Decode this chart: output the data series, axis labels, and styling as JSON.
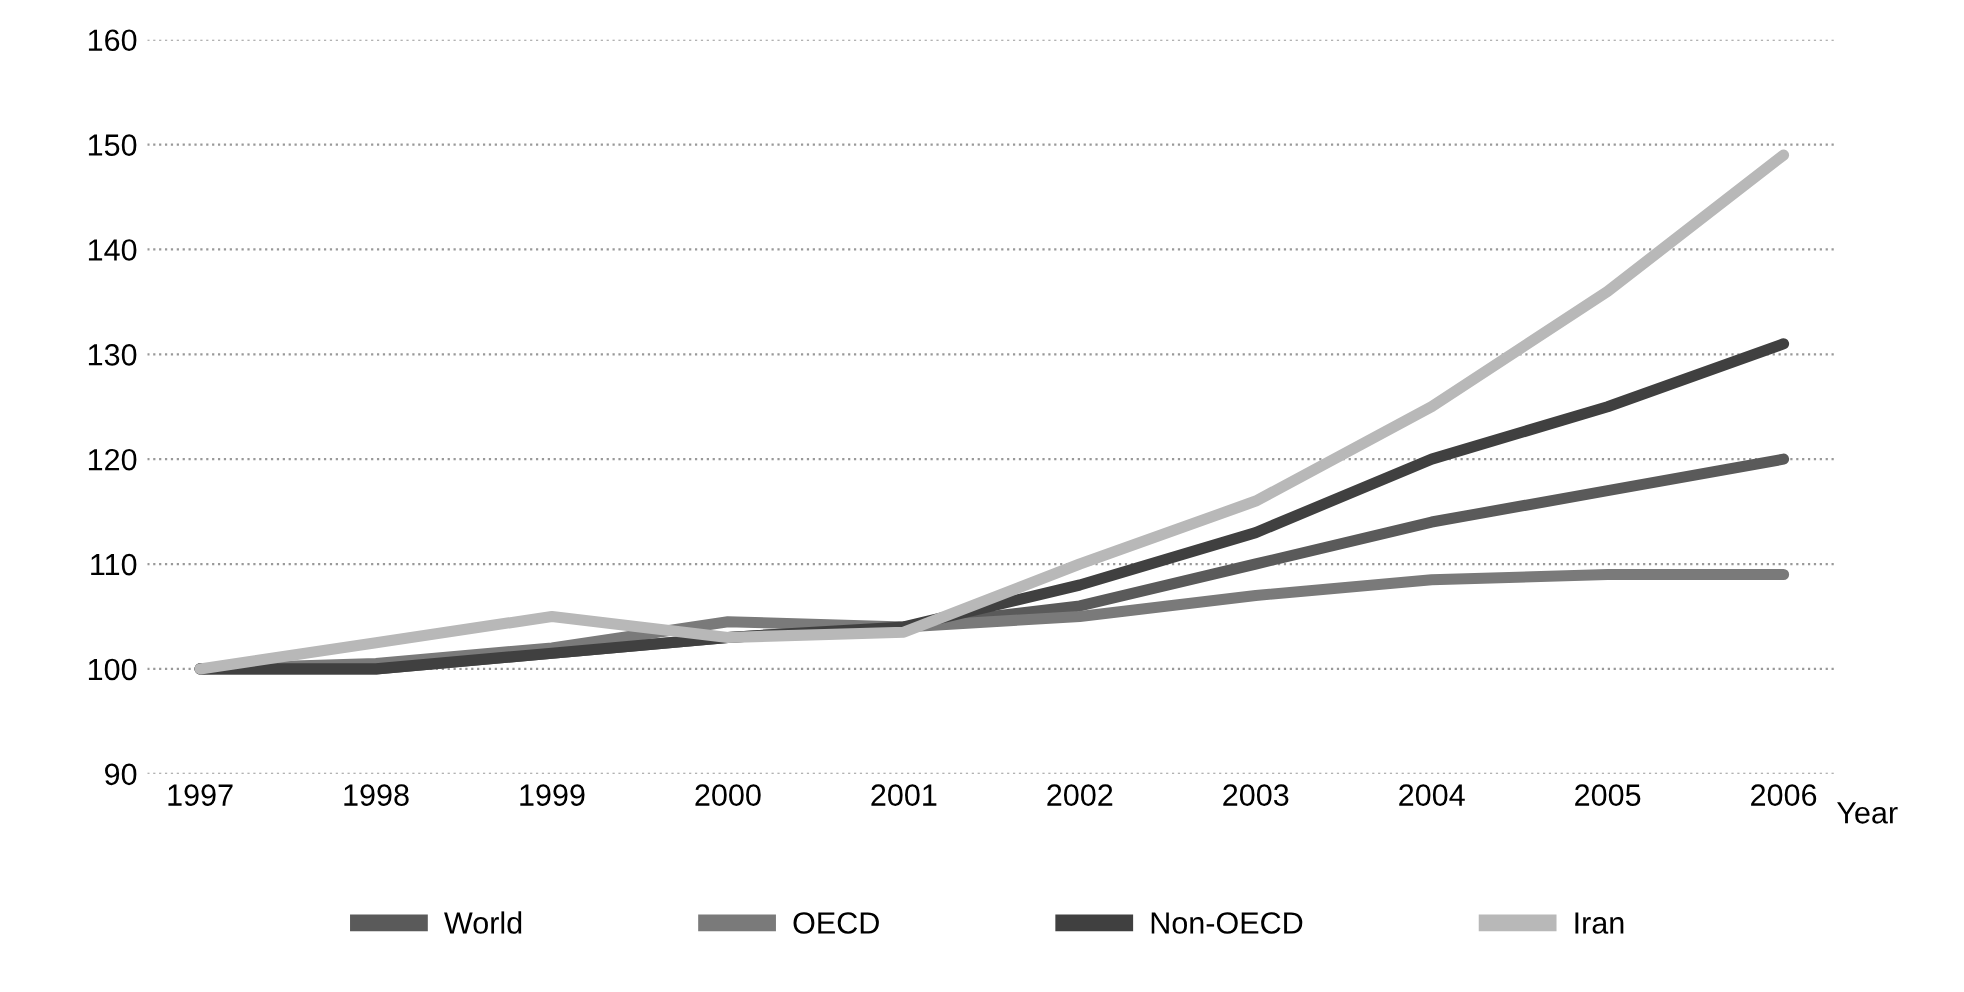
{
  "chart_data": {
    "type": "line",
    "xlabel": "Year",
    "categories": [
      "1997",
      "1998",
      "1999",
      "2000",
      "2001",
      "2002",
      "2003",
      "2004",
      "2005",
      "2006"
    ],
    "series": [
      {
        "name": "World",
        "color": "#5a5a5a",
        "values": [
          100,
          100,
          101.5,
          103,
          104,
          106,
          110,
          114,
          117,
          120
        ]
      },
      {
        "name": "OECD",
        "color": "#7a7a7a",
        "values": [
          100,
          100.5,
          102,
          104.5,
          104,
          105,
          107,
          108.5,
          109,
          109
        ]
      },
      {
        "name": "Non-OECD",
        "color": "#404040",
        "values": [
          100,
          100,
          101.5,
          103,
          104,
          108,
          113,
          120,
          125,
          131
        ]
      },
      {
        "name": "Iran",
        "color": "#b8b8b8",
        "values": [
          100,
          102.5,
          105,
          103,
          103.5,
          110,
          116,
          125,
          136,
          149
        ]
      }
    ],
    "ylim": [
      90,
      160
    ],
    "yticks": [
      90,
      100,
      110,
      120,
      130,
      140,
      150,
      160
    ],
    "grid": "y",
    "legend": "bottom",
    "marker": "none",
    "line_style": "solid"
  }
}
